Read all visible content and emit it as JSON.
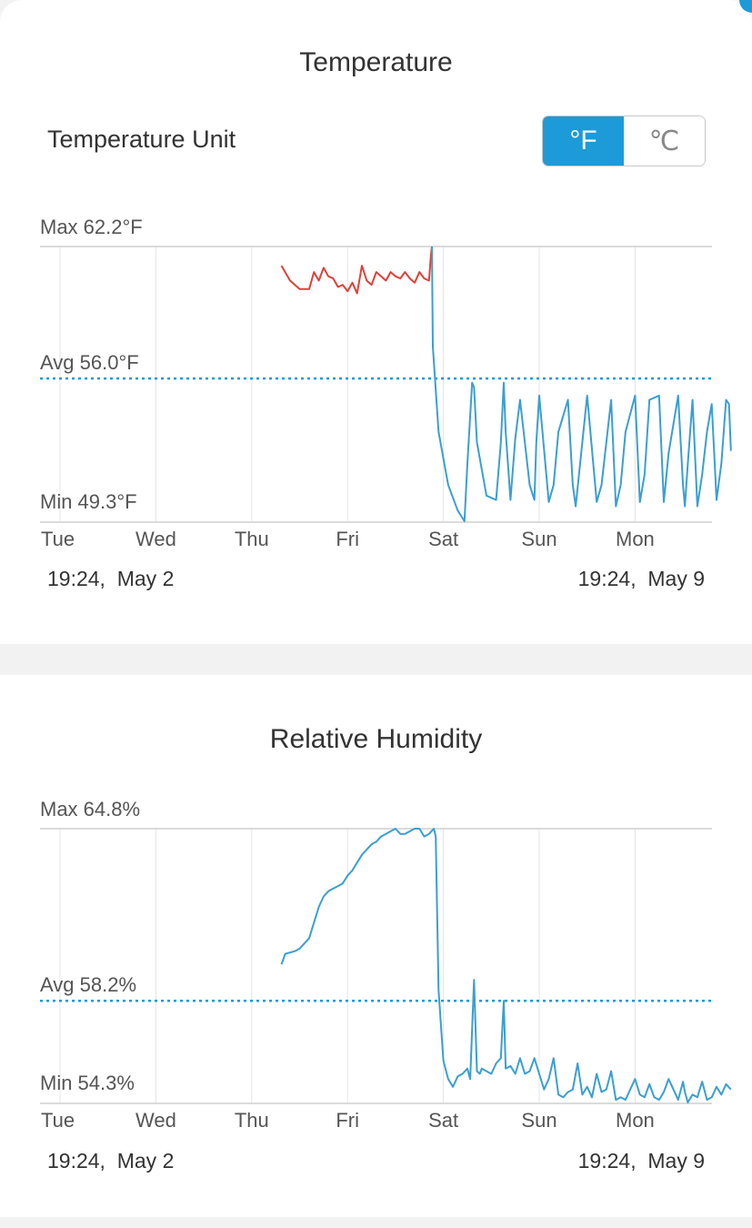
{
  "temperature": {
    "title": "Temperature",
    "unit_label": "Temperature Unit",
    "unit_options": [
      "°F",
      "℃"
    ],
    "selected_unit": "°F",
    "stats": {
      "max": "Max 62.2°F",
      "avg": "Avg 56.0°F",
      "min": "Min 49.3°F"
    },
    "range_start": "19:24,  May 2",
    "range_end": "19:24,  May 9"
  },
  "humidity": {
    "title": "Relative Humidity",
    "stats": {
      "max": "Max 64.8%",
      "avg": "Avg 58.2%",
      "min": "Min 54.3%"
    },
    "range_start": "19:24,  May 2",
    "range_end": "19:24,  May 9"
  },
  "colors": {
    "accent": "#1c9bd8",
    "line_blue": "#3a9fd2",
    "line_red": "#e0403a",
    "grid": "#e4e4e4"
  },
  "chart_data": [
    {
      "type": "line",
      "title": "Temperature",
      "x_unit": "days since Tue 00:00",
      "categories": [
        "Tue",
        "Wed",
        "Thu",
        "Fri",
        "Sat",
        "Sun",
        "Mon"
      ],
      "ylim": [
        49.3,
        62.2
      ],
      "avg": 56.0,
      "grid": true,
      "series": [
        {
          "color": "#e0403a",
          "x": [
            2.31,
            2.4,
            2.5,
            2.6,
            2.65,
            2.7,
            2.75,
            2.8,
            2.85,
            2.9,
            2.95,
            3.0,
            3.05,
            3.1,
            3.15,
            3.2,
            3.25,
            3.3,
            3.35,
            3.4,
            3.45,
            3.5,
            3.55,
            3.6,
            3.65,
            3.7,
            3.75,
            3.8,
            3.85,
            3.87,
            3.88
          ],
          "y": [
            61.3,
            60.6,
            60.2,
            60.2,
            61.0,
            60.6,
            61.2,
            60.8,
            60.7,
            60.3,
            60.4,
            60.1,
            60.5,
            60.0,
            61.3,
            60.6,
            60.4,
            61.0,
            60.8,
            60.6,
            61.0,
            60.8,
            60.7,
            61.0,
            60.7,
            60.5,
            61.0,
            60.7,
            60.6,
            61.8,
            62.2
          ]
        },
        {
          "color": "#3a9fd2",
          "x": [
            3.88,
            3.89,
            3.95,
            4.05,
            4.15,
            4.22,
            4.25,
            4.3,
            4.32,
            4.35,
            4.45,
            4.55,
            4.6,
            4.63,
            4.65,
            4.7,
            4.75,
            4.8,
            4.9,
            4.95,
            4.97,
            5.0,
            5.1,
            5.15,
            5.2,
            5.3,
            5.35,
            5.38,
            5.45,
            5.5,
            5.6,
            5.65,
            5.75,
            5.8,
            5.85,
            5.9,
            6.0,
            6.05,
            6.1,
            6.15,
            6.25,
            6.3,
            6.35,
            6.45,
            6.5,
            6.52,
            6.55,
            6.6,
            6.65,
            6.7,
            6.75,
            6.8,
            6.85,
            6.9,
            6.95,
            6.98,
            7.0
          ],
          "y": [
            62.2,
            57.5,
            53.5,
            51.0,
            49.8,
            49.3,
            52.0,
            55.8,
            55.6,
            53.0,
            50.5,
            50.3,
            53.0,
            55.8,
            53.5,
            50.3,
            53.2,
            55.0,
            51.0,
            50.3,
            53.0,
            55.2,
            50.2,
            51.0,
            53.5,
            55.0,
            51.0,
            50.0,
            53.0,
            55.2,
            50.2,
            51.0,
            55.0,
            50.0,
            51.0,
            53.5,
            55.2,
            50.2,
            51.5,
            55.0,
            55.2,
            50.2,
            52.5,
            55.2,
            51.0,
            50.0,
            52.0,
            55.0,
            50.0,
            51.5,
            53.5,
            54.8,
            50.3,
            52.0,
            55.0,
            54.8,
            52.6
          ]
        }
      ]
    },
    {
      "type": "line",
      "title": "Relative Humidity",
      "x_unit": "days since Tue 00:00",
      "categories": [
        "Tue",
        "Wed",
        "Thu",
        "Fri",
        "Sat",
        "Sun",
        "Mon"
      ],
      "ylim": [
        54.3,
        64.8
      ],
      "avg": 58.2,
      "grid": true,
      "series": [
        {
          "color": "#3a9fd2",
          "x": [
            2.31,
            2.35,
            2.45,
            2.5,
            2.55,
            2.6,
            2.65,
            2.7,
            2.75,
            2.8,
            2.85,
            2.9,
            2.95,
            3.0,
            3.05,
            3.1,
            3.15,
            3.2,
            3.25,
            3.3,
            3.35,
            3.4,
            3.45,
            3.5,
            3.55,
            3.6,
            3.65,
            3.7,
            3.75,
            3.8,
            3.85,
            3.9,
            3.92,
            3.95,
            4.0,
            4.05,
            4.1,
            4.15,
            4.2,
            4.25,
            4.28,
            4.32,
            4.35,
            4.38,
            4.4,
            4.45,
            4.5,
            4.55,
            4.6,
            4.63,
            4.65,
            4.7,
            4.75,
            4.8,
            4.85,
            4.9,
            4.95,
            5.0,
            5.05,
            5.1,
            5.15,
            5.2,
            5.25,
            5.3,
            5.35,
            5.4,
            5.45,
            5.5,
            5.55,
            5.6,
            5.65,
            5.7,
            5.75,
            5.8,
            5.85,
            5.9,
            5.95,
            6.0,
            6.05,
            6.1,
            6.15,
            6.2,
            6.25,
            6.3,
            6.35,
            6.4,
            6.45,
            6.5,
            6.52,
            6.55,
            6.6,
            6.65,
            6.7,
            6.75,
            6.8,
            6.85,
            6.9,
            6.95,
            7.0
          ],
          "y": [
            59.6,
            60.0,
            60.1,
            60.2,
            60.4,
            60.6,
            61.2,
            61.8,
            62.2,
            62.4,
            62.5,
            62.6,
            62.7,
            63.0,
            63.2,
            63.5,
            63.8,
            64.0,
            64.2,
            64.3,
            64.5,
            64.6,
            64.7,
            64.8,
            64.6,
            64.6,
            64.7,
            64.8,
            64.8,
            64.5,
            64.6,
            64.8,
            64.5,
            58.6,
            55.9,
            55.2,
            54.9,
            55.3,
            55.4,
            55.6,
            55.2,
            59.0,
            55.5,
            55.4,
            55.6,
            55.5,
            55.4,
            55.8,
            56.0,
            58.2,
            55.6,
            55.7,
            55.4,
            56.0,
            55.4,
            55.5,
            56.0,
            55.4,
            54.8,
            55.2,
            56.0,
            54.6,
            54.5,
            54.7,
            54.8,
            55.8,
            54.6,
            54.9,
            54.5,
            55.4,
            54.7,
            54.8,
            55.5,
            54.4,
            54.5,
            54.4,
            54.8,
            55.2,
            54.6,
            54.5,
            55.0,
            54.5,
            54.4,
            54.7,
            55.2,
            54.8,
            54.4,
            55.1,
            54.7,
            54.3,
            54.6,
            54.5,
            55.1,
            54.4,
            54.5,
            54.9,
            54.6,
            55.0,
            54.8
          ]
        }
      ]
    }
  ]
}
